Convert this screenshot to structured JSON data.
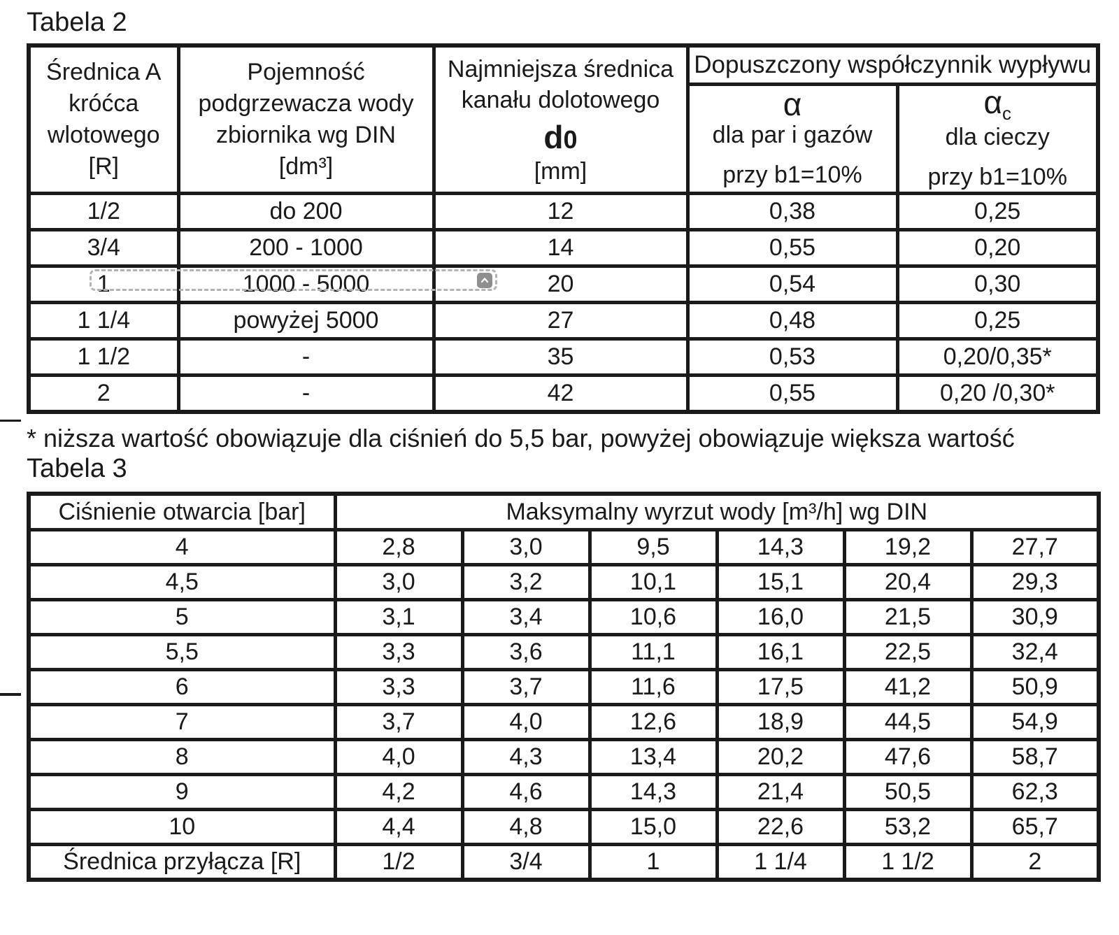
{
  "page": {
    "title_table2": "Tabela 2",
    "title_table3": "Tabela 3",
    "footnote": "* niższa wartość obowiązuje dla ciśnień do 5,5 bar, powyżej obowiązuje większa wartość"
  },
  "colors": {
    "text": "#1a1a1a",
    "border": "#1a1a1a",
    "selection_dash": "#b3b3b3",
    "collapse_button_bg": "#8f8f8f",
    "collapse_chevron": "#ffffff"
  },
  "table2": {
    "header": {
      "col_diameter": "Średnica A\nkróćca\nwlotowego\n[R]",
      "col_capacity": "Pojemność\npodgrzewacza wody\nzbiornika wg DIN\n[dm³]",
      "col_channel_lines": "Najmniejsza średnica\nkanału dolotowego",
      "col_channel_symbol": "d",
      "col_channel_symbol_sub": "0",
      "col_channel_unit": "[mm]",
      "col_span_flow": "Dopuszczony współczynnik wypływu",
      "col_alpha_symbol": "α",
      "col_alpha_desc": "dla par i gazów",
      "col_alpha_cond": "przy b1=10%",
      "col_alphac_symbol": "α",
      "col_alphac_sub": "c",
      "col_alphac_desc": "dla cieczy",
      "col_alphac_cond": "przy b1=10%"
    },
    "rows": [
      [
        "1/2",
        "do 200",
        "12",
        "0,38",
        "0,25"
      ],
      [
        "3/4",
        "200 - 1000",
        "14",
        "0,55",
        "0,20"
      ],
      [
        "1",
        "1000 - 5000",
        "20",
        "0,54",
        "0,30"
      ],
      [
        "1 1/4",
        "powyżej 5000",
        "27",
        "0,48",
        "0,25"
      ],
      [
        "1 1/2",
        "-",
        "35",
        "0,53",
        "0,20/0,35*"
      ],
      [
        "2",
        "-",
        "42",
        "0,55",
        "0,20 /0,30*"
      ]
    ]
  },
  "table3": {
    "header": {
      "col_pressure": "Ciśnienie otwarcia [bar]",
      "col_span_output": "Maksymalny wyrzut wody [m³/h] wg DIN"
    },
    "rows": [
      [
        "4",
        "2,8",
        "3,0",
        "9,5",
        "14,3",
        "19,2",
        "27,7"
      ],
      [
        "4,5",
        "3,0",
        "3,2",
        "10,1",
        "15,1",
        "20,4",
        "29,3"
      ],
      [
        "5",
        "3,1",
        "3,4",
        "10,6",
        "16,0",
        "21,5",
        "30,9"
      ],
      [
        "5,5",
        "3,3",
        "3,6",
        "11,1",
        "16,1",
        "22,5",
        "32,4"
      ],
      [
        "6",
        "3,3",
        "3,7",
        "11,6",
        "17,5",
        "41,2",
        "50,9"
      ],
      [
        "7",
        "3,7",
        "4,0",
        "12,6",
        "18,9",
        "44,5",
        "54,9"
      ],
      [
        "8",
        "4,0",
        "4,3",
        "13,4",
        "20,2",
        "47,6",
        "58,7"
      ],
      [
        "9",
        "4,2",
        "4,6",
        "14,3",
        "21,4",
        "50,5",
        "62,3"
      ],
      [
        "10",
        "4,4",
        "4,8",
        "15,0",
        "22,6",
        "53,2",
        "65,7"
      ],
      [
        "Średnica przyłącza [R]",
        "1/2",
        "3/4",
        "1",
        "1 1/4",
        "1 1/2",
        "2"
      ]
    ]
  }
}
